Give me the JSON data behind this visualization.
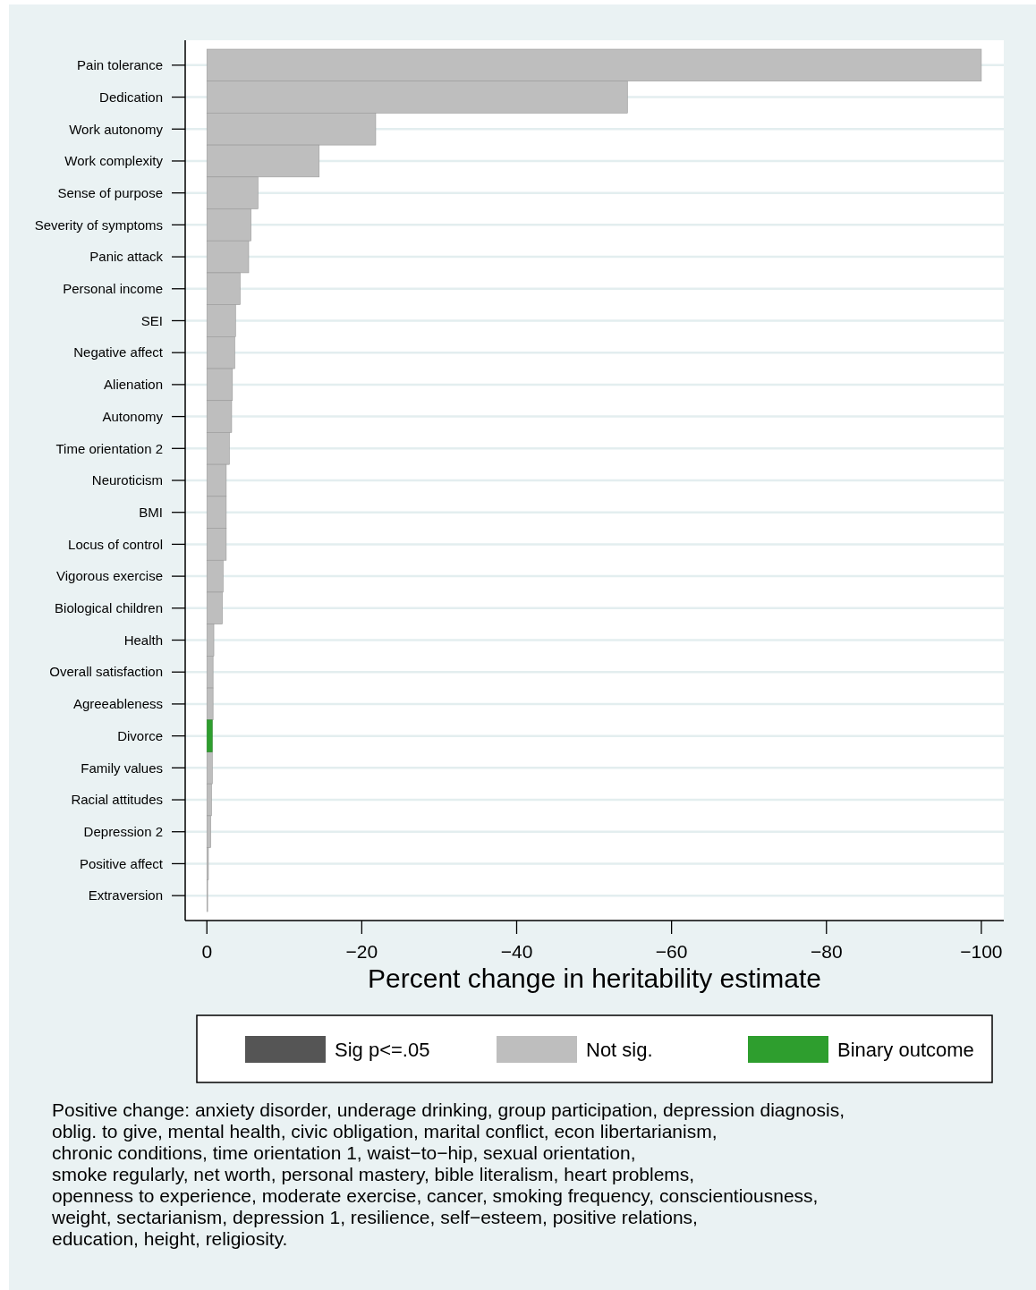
{
  "chart_data": {
    "type": "bar",
    "orientation": "horizontal",
    "stacked": true,
    "xlabel": "Percent change in heritability estimate",
    "categories": [
      "Pain tolerance",
      "Dedication",
      "Work autonomy",
      "Work complexity",
      "Sense of purpose",
      "Severity of symptoms",
      "Panic attack",
      "Personal income",
      "SEI",
      "Negative affect",
      "Alienation",
      "Autonomy",
      "Time orientation 2",
      "Neuroticism",
      "BMI",
      "Locus of control",
      "Vigorous exercise",
      "Biological children",
      "Health",
      "Overall satisfaction",
      "Agreeableness",
      "Divorce",
      "Family values",
      "Racial attitudes",
      "Depression 2",
      "Positive affect",
      "Extraversion"
    ],
    "series": [
      {
        "name": "Sig p<=.05",
        "color": "#555555",
        "values": [
          null,
          null,
          null,
          null,
          null,
          null,
          null,
          null,
          null,
          null,
          null,
          null,
          null,
          null,
          null,
          null,
          null,
          null,
          null,
          null,
          null,
          null,
          null,
          null,
          null,
          null,
          null
        ]
      },
      {
        "name": "Not sig.",
        "color": "#bebebe",
        "values": [
          -100,
          -54.3,
          -21.8,
          -14.5,
          -6.6,
          -5.7,
          -5.4,
          -4.3,
          -3.7,
          -3.6,
          -3.3,
          -3.2,
          -2.9,
          -2.5,
          -2.5,
          -2.5,
          -2.1,
          -2.0,
          -0.9,
          -0.8,
          -0.8,
          null,
          -0.7,
          -0.6,
          -0.5,
          -0.2,
          -0.1
        ]
      },
      {
        "name": "Binary outcome",
        "color": "#2e9e2e",
        "values": [
          null,
          null,
          null,
          null,
          null,
          null,
          null,
          null,
          null,
          null,
          null,
          null,
          null,
          null,
          null,
          null,
          null,
          null,
          null,
          null,
          null,
          -0.7,
          null,
          null,
          null,
          null,
          null
        ]
      }
    ],
    "xlim": [
      2.8,
      -102.9
    ],
    "xticks": [
      0,
      {
        "value": -20,
        "label": "−20"
      },
      {
        "value": -40,
        "label": "−40"
      },
      {
        "value": -60,
        "label": "−60"
      },
      {
        "value": -80,
        "label": "−80"
      },
      {
        "value": -100,
        "label": "−100"
      }
    ],
    "grid": "y",
    "legend": "bottom",
    "annotations": [
      "Positive change: anxiety disorder, underage drinking, group participation, depression diagnosis,\noblig. to give, mental health, civic obligation, marital conflict, econ libertarianism,\nchronic conditions, time orientation 1, waist−to−hip, sexual orientation,\nsmoke regularly, net worth, personal mastery, bible literalism, heart problems,\nopenness to experience, moderate exercise, cancer, smoking frequency, conscientiousness,\nweight, sectarianism, depression 1, resilience, self−esteem, positive relations,\neducation, height, religiosity."
    ]
  }
}
